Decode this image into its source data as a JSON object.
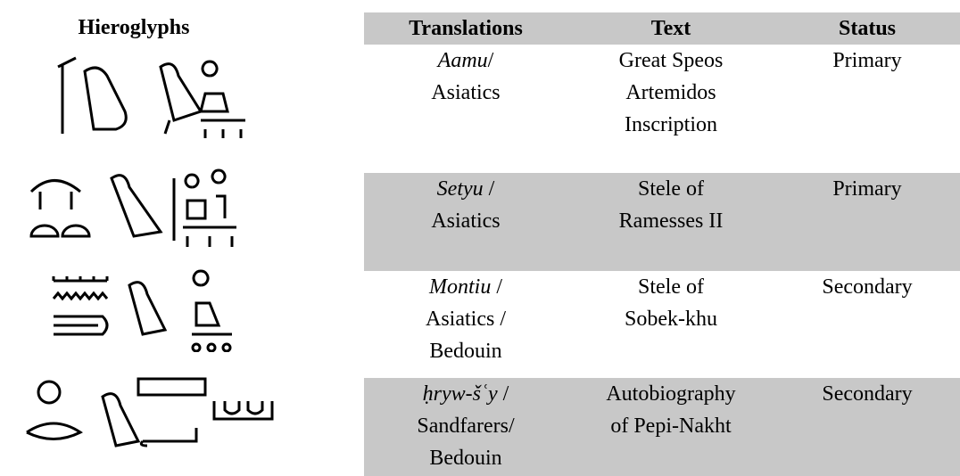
{
  "header": {
    "glyph_title": "Hieroglyphs",
    "columns": [
      "Translations",
      "Text",
      "Status"
    ]
  },
  "table": {
    "rows": [
      {
        "translation": [
          [
            "Aamu",
            "/"
          ],
          [
            "Asiatics"
          ]
        ],
        "text": [
          "Great Speos",
          "Artemidos",
          "Inscription"
        ],
        "status": "Primary"
      },
      {
        "translation": [
          [
            "Setyu",
            " /"
          ],
          [
            "Asiatics"
          ]
        ],
        "text": [
          "Stele of",
          "Ramesses II"
        ],
        "status": "Primary"
      },
      {
        "translation": [
          [
            "Montiu",
            " /"
          ],
          [
            "Asiatics /"
          ],
          [
            "Bedouin"
          ]
        ],
        "text": [
          "Stele of",
          "Sobek-khu"
        ],
        "status": "Secondary"
      },
      {
        "translation": [
          [
            "ḥryw-šʿy",
            " /"
          ],
          [
            "Sandfarers/"
          ],
          [
            "Bedouin"
          ]
        ],
        "text": [
          "Autobiography",
          "of Pepi-Nakht"
        ],
        "status": "Secondary"
      }
    ]
  }
}
